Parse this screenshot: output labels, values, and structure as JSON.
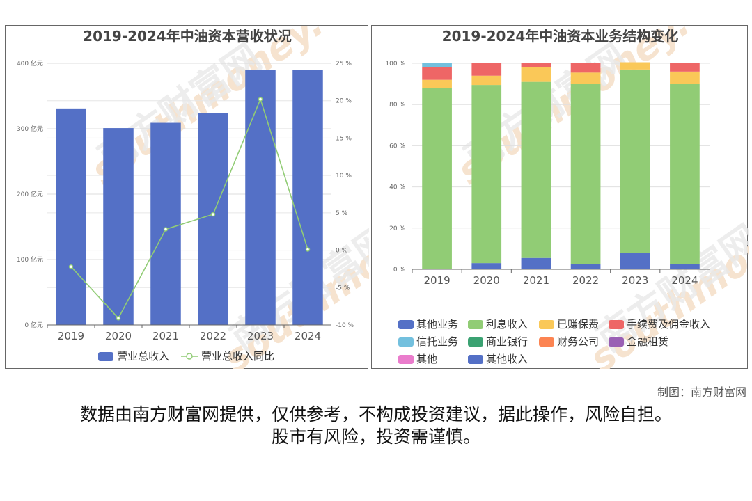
{
  "chart_data": [
    {
      "type": "bar",
      "title": "2019-2024年中油资本营收状况",
      "categories": [
        "2019",
        "2020",
        "2021",
        "2022",
        "2023",
        "2024"
      ],
      "series": [
        {
          "name": "营业总收入",
          "type": "bar",
          "axis": "left",
          "color": "#5470c6",
          "values": [
            331,
            301,
            309,
            324,
            390,
            390
          ]
        },
        {
          "name": "营业总收入同比",
          "type": "line",
          "axis": "right",
          "color": "#91cc75",
          "values": [
            -2.2,
            -9.1,
            2.8,
            4.8,
            20.2,
            0.1
          ]
        }
      ],
      "ylim_left": [
        0,
        400
      ],
      "ylim_right": [
        -10,
        25
      ],
      "yticks_left": [
        "0 亿元",
        "100 亿元",
        "200 亿元",
        "300 亿元",
        "400 亿元"
      ],
      "yticks_right": [
        "-10 %",
        "-5 %",
        "0 %",
        "5 %",
        "10 %",
        "15 %",
        "20 %",
        "25 %"
      ],
      "legend": "bottom",
      "grid": true
    },
    {
      "type": "bar",
      "stacked": true,
      "title": "2019-2024年中油资本业务结构变化",
      "categories": [
        "2019",
        "2020",
        "2021",
        "2022",
        "2023",
        "2024"
      ],
      "ylim": [
        0,
        100
      ],
      "yticks": [
        "0 %",
        "20 %",
        "40 %",
        "60 %",
        "80 %",
        "100 %"
      ],
      "series": [
        {
          "name": "其他业务",
          "color": "#5470c6",
          "values": [
            0,
            3,
            5.5,
            2.5,
            8,
            2.5
          ]
        },
        {
          "name": "利息收入",
          "color": "#91cc75",
          "values": [
            88,
            86.5,
            85.5,
            87.5,
            89,
            87.5
          ]
        },
        {
          "name": "已赚保费",
          "color": "#fac858",
          "values": [
            4,
            4.5,
            7,
            5.5,
            3.5,
            6
          ]
        },
        {
          "name": "手续费及佣金收入",
          "color": "#ee6666",
          "values": [
            6,
            6,
            2,
            4.5,
            0,
            4
          ]
        },
        {
          "name": "信托业务",
          "color": "#73c0de",
          "values": [
            2,
            0,
            0,
            0,
            0,
            0
          ]
        },
        {
          "name": "商业银行",
          "color": "#3ba272",
          "values": [
            0,
            0,
            0,
            0,
            0,
            0
          ]
        },
        {
          "name": "财务公司",
          "color": "#fc8452",
          "values": [
            0,
            0,
            0,
            0,
            0,
            0
          ]
        },
        {
          "name": "金融租赁",
          "color": "#9a60b4",
          "values": [
            0,
            0,
            0,
            0,
            0,
            0
          ]
        },
        {
          "name": "其他",
          "color": "#ea7ccc",
          "values": [
            0,
            0,
            0,
            0,
            0,
            0
          ]
        },
        {
          "name": "其他收入",
          "color": "#5470c6",
          "values": [
            0,
            0,
            0,
            0,
            0,
            0
          ]
        }
      ],
      "legend": "bottom",
      "grid": true
    }
  ],
  "watermark": {
    "cn": "南方财富网",
    "en": "southmoney.com"
  },
  "credit": "制图：南方财富网",
  "disclaimer_line1": "数据由南方财富网提供，仅供参考，不构成投资建议，据此操作，风险自担。",
  "disclaimer_line2": "股市有风险，投资需谨慎。"
}
